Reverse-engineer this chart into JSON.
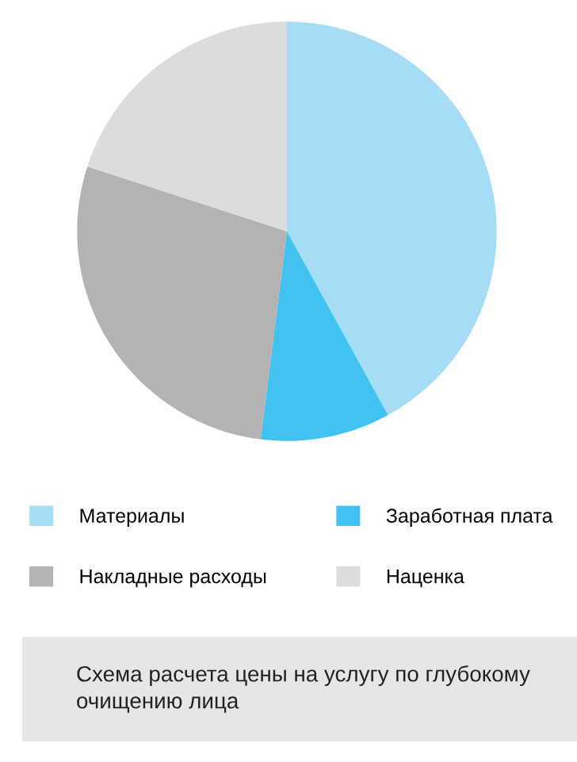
{
  "chart_data": {
    "type": "pie",
    "title": "Схема расчета цены на услугу по глубокому очищению лица",
    "categories": [
      "Материалы",
      "Заработная плата",
      "Накладные расходы",
      "Наценка"
    ],
    "values": [
      42,
      10,
      28,
      20
    ],
    "colors": [
      "#a6dcf6",
      "#41c2f0",
      "#b3b3b3",
      "#dcdcdc"
    ],
    "legend": "bottom"
  }
}
